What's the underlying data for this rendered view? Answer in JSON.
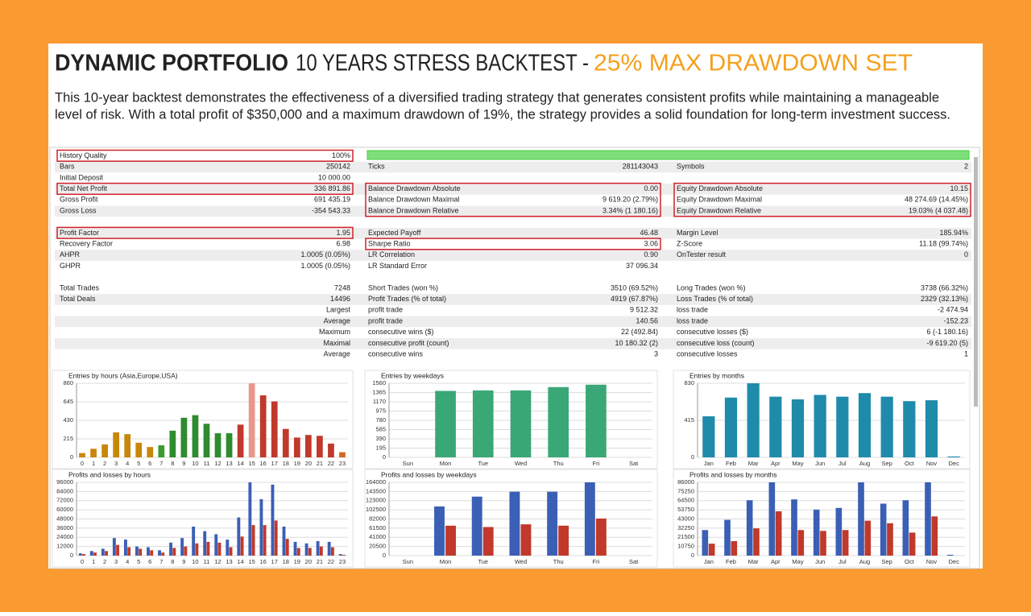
{
  "header": {
    "title": {
      "bold": "DYNAMIC PORTFOLIO",
      "normal": "10 YEARS STRESS BACKTEST -",
      "accent": "25% MAX DRAWDOWN SET"
    },
    "description": [
      "This 10-year backtest demonstrates the effectiveness of a diversified trading strategy that generates consistent profits while maintaining a manageable",
      "level of risk. With a total profit of $350,000 and a maximum drawdown of 19%, the strategy provides a solid foundation for long-term investment success."
    ]
  },
  "table": {
    "groups": [
      [
        {
          "c1": [
            "History Quality",
            "100%"
          ]
        },
        {
          "c1": [
            "Bars",
            "250142"
          ],
          "c2": [
            "Ticks",
            "281143043"
          ],
          "c3": [
            "Symbols",
            "2"
          ]
        },
        {
          "c1": [
            "Initial Deposit",
            "10 000.00"
          ]
        },
        {
          "c1": [
            "Total Net Profit",
            "336 891.86"
          ],
          "c2": [
            "Balance Drawdown Absolute",
            "0.00"
          ],
          "c3": [
            "Equity Drawdown Absolute",
            "10.15"
          ]
        },
        {
          "c1": [
            "Gross Profit",
            "691 435.19"
          ],
          "c2": [
            "Balance Drawdown Maximal",
            "9 619.20 (2.79%)"
          ],
          "c3": [
            "Equity Drawdown Maximal",
            "48 274.69 (14.45%)"
          ]
        },
        {
          "c1": [
            "Gross Loss",
            "-354 543.33"
          ],
          "c2": [
            "Balance Drawdown Relative",
            "3.34% (1 180.16)"
          ],
          "c3": [
            "Equity Drawdown Relative",
            "19.03% (4 037.48)"
          ]
        }
      ],
      [
        {
          "c1": [
            "Profit Factor",
            "1.95"
          ],
          "c2": [
            "Expected Payoff",
            "46.48"
          ],
          "c3": [
            "Margin Level",
            "185.94%"
          ]
        },
        {
          "c1": [
            "Recovery Factor",
            "6.98"
          ],
          "c2": [
            "Sharpe Ratio",
            "3.06"
          ],
          "c3": [
            "Z-Score",
            "11.18 (99.74%)"
          ]
        },
        {
          "c1": [
            "AHPR",
            "1.0005 (0.05%)"
          ],
          "c2": [
            "LR Correlation",
            "0.90"
          ],
          "c3": [
            "OnTester result",
            "0"
          ]
        },
        {
          "c1": [
            "GHPR",
            "1.0005 (0.05%)"
          ],
          "c2": [
            "LR Standard Error",
            "37 096.34"
          ]
        }
      ],
      [
        {
          "c1": [
            "Total Trades",
            "7248"
          ],
          "c2": [
            "Short Trades (won %)",
            "3510 (69.52%)"
          ],
          "c3": [
            "Long Trades (won %)",
            "3738 (66.32%)"
          ]
        },
        {
          "c1": [
            "Total Deals",
            "14496"
          ],
          "c2": [
            "Profit Trades (% of total)",
            "4919 (67.87%)"
          ],
          "c3": [
            "Loss Trades (% of total)",
            "2329 (32.13%)"
          ]
        },
        {
          "c1": [
            "Largest"
          ],
          "c2": [
            "profit trade",
            "9 512.32"
          ],
          "c3": [
            "loss trade",
            "-2 474.94"
          ]
        },
        {
          "c1": [
            "Average"
          ],
          "c2": [
            "profit trade",
            "140.56"
          ],
          "c3": [
            "loss trade",
            "-152.23"
          ]
        },
        {
          "c1": [
            "Maximum"
          ],
          "c2": [
            "consecutive wins ($)",
            "22 (492.84)"
          ],
          "c3": [
            "consecutive losses ($)",
            "6 (-1 180.16)"
          ]
        },
        {
          "c1": [
            "Maximal"
          ],
          "c2": [
            "consecutive profit (count)",
            "10 180.32 (2)"
          ],
          "c3": [
            "consecutive loss (count)",
            "-9 619.20 (5)"
          ]
        },
        {
          "c1": [
            "Average"
          ],
          "c2": [
            "consecutive wins",
            "3"
          ],
          "c3": [
            "consecutive losses",
            "1"
          ]
        }
      ]
    ]
  },
  "charts": [
    {
      "type": "bar",
      "title": "Entries by hours (Asia,Europe,USA)",
      "categories": [
        "0",
        "1",
        "2",
        "3",
        "4",
        "5",
        "6",
        "7",
        "8",
        "9",
        "10",
        "11",
        "12",
        "13",
        "14",
        "15",
        "16",
        "17",
        "18",
        "19",
        "20",
        "21",
        "22",
        "23"
      ],
      "values": [
        50,
        100,
        150,
        290,
        270,
        170,
        120,
        140,
        310,
        460,
        490,
        390,
        280,
        280,
        380,
        860,
        720,
        650,
        330,
        230,
        260,
        250,
        160,
        60
      ],
      "colors": [
        "#c8860a",
        "#c8860a",
        "#c8860a",
        "#c8860a",
        "#c8860a",
        "#c8860a",
        "#c8860a",
        "#3c9a2e",
        "#2e8b2e",
        "#2e8b2e",
        "#2e8b2e",
        "#2e8b2e",
        "#2e8b2e",
        "#2e8b2e",
        "#c0392b",
        "#e8988a",
        "#c0392b",
        "#c0392b",
        "#c0392b",
        "#c0392b",
        "#c0392b",
        "#c0392b",
        "#c0392b",
        "#d2691e"
      ],
      "ylim": [
        0,
        860
      ],
      "yticks": [
        0,
        215,
        430,
        645,
        860
      ]
    },
    {
      "type": "bar",
      "title": "Entries by weekdays",
      "categories": [
        "Sun",
        "Mon",
        "Tue",
        "Wed",
        "Thu",
        "Fri",
        "Sat"
      ],
      "values": [
        0,
        1400,
        1410,
        1410,
        1480,
        1530,
        0
      ],
      "color": "#3aa776",
      "ylim": [
        0,
        1560
      ],
      "yticks": [
        0,
        195,
        390,
        585,
        780,
        975,
        1170,
        1365,
        1560
      ]
    },
    {
      "type": "bar",
      "title": "Entries by months",
      "categories": [
        "Jan",
        "Feb",
        "Mar",
        "Apr",
        "May",
        "Jun",
        "Jul",
        "Aug",
        "Sep",
        "Oct",
        "Nov",
        "Dec"
      ],
      "values": [
        460,
        670,
        830,
        680,
        650,
        700,
        680,
        720,
        680,
        630,
        640,
        10
      ],
      "color": "#1f8bab",
      "ylim": [
        0,
        830
      ],
      "yticks": [
        0,
        415,
        830
      ]
    },
    {
      "type": "grouped_bar",
      "title": "Profits and losses by hours",
      "categories": [
        "0",
        "1",
        "2",
        "3",
        "4",
        "5",
        "6",
        "7",
        "8",
        "9",
        "10",
        "11",
        "12",
        "13",
        "14",
        "15",
        "16",
        "17",
        "18",
        "19",
        "20",
        "21",
        "22",
        "23"
      ],
      "series": [
        {
          "color": "#3b5fb5",
          "values": [
            3000,
            6000,
            9000,
            23000,
            21000,
            12000,
            11000,
            7000,
            17000,
            23000,
            38000,
            32000,
            28000,
            21000,
            50000,
            96000,
            74000,
            93000,
            38000,
            18000,
            16000,
            19000,
            18000,
            2000
          ]
        },
        {
          "color": "#c0392b",
          "values": [
            2000,
            4000,
            6000,
            14000,
            11000,
            9000,
            7000,
            4000,
            10000,
            12000,
            16000,
            18000,
            17000,
            11000,
            25000,
            40000,
            40000,
            46000,
            22000,
            10000,
            10000,
            12000,
            11000,
            1000
          ]
        }
      ],
      "ylim": [
        0,
        96000
      ],
      "yticks": [
        0,
        12000,
        24000,
        36000,
        48000,
        60000,
        72000,
        84000,
        96000
      ]
    },
    {
      "type": "grouped_bar",
      "title": "Profits and losses by weekdays",
      "categories": [
        "Sun",
        "Mon",
        "Tue",
        "Wed",
        "Thu",
        "Fri",
        "Sat"
      ],
      "series": [
        {
          "color": "#3b5fb5",
          "values": [
            0,
            110000,
            132000,
            143000,
            143000,
            164000,
            0
          ]
        },
        {
          "color": "#c0392b",
          "values": [
            0,
            67000,
            64000,
            70000,
            67000,
            83000,
            0
          ]
        }
      ],
      "ylim": [
        0,
        164000
      ],
      "yticks": [
        0,
        20500,
        41000,
        61500,
        82000,
        102500,
        123000,
        143500,
        164000
      ]
    },
    {
      "type": "grouped_bar",
      "title": "Profits and losses by months",
      "categories": [
        "Jan",
        "Feb",
        "Mar",
        "Apr",
        "May",
        "Jun",
        "Jul",
        "Aug",
        "Sep",
        "Oct",
        "Nov",
        "Dec"
      ],
      "series": [
        {
          "color": "#3b5fb5",
          "values": [
            30000,
            42000,
            65000,
            86000,
            66000,
            54000,
            56000,
            86000,
            61000,
            65000,
            86000,
            1000
          ]
        },
        {
          "color": "#c0392b",
          "values": [
            14000,
            17000,
            32000,
            52000,
            30000,
            29000,
            30000,
            41000,
            38000,
            27000,
            46000,
            0
          ]
        }
      ],
      "ylim": [
        0,
        86000
      ],
      "yticks": [
        0,
        10750,
        21500,
        32250,
        43000,
        53750,
        64500,
        75250,
        86000
      ]
    }
  ]
}
